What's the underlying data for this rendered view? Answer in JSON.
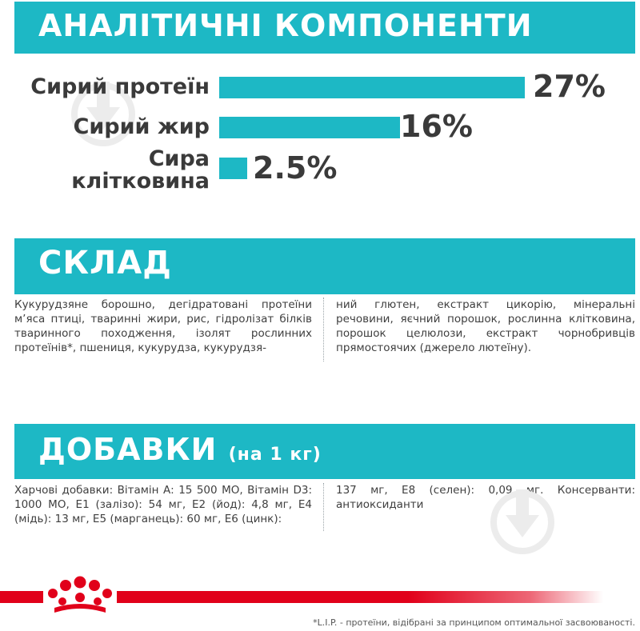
{
  "analytical": {
    "heading": "АНАЛІТИЧНІ КОМПОНЕНТИ",
    "rows": [
      {
        "label": "Сирий протеїн",
        "value": 27,
        "value_text": "27%"
      },
      {
        "label": "Сирий жир",
        "value": 16,
        "value_text": "16%"
      },
      {
        "label_line1": "Сира",
        "label_line2": "клітковина",
        "value": 2.5,
        "value_text": "2.5%"
      }
    ]
  },
  "composition": {
    "heading": "СКЛАД",
    "col1": "Кукурудзяне борошно, дегідратовані протеїни м’яса птиці, тваринні жири, рис, гідролізат білків тваринного походження, ізолят рослинних протеїнів*, пшениця, кукурудза, кукурудзя-",
    "col2": "ний глютен, екстракт цикорію, мінеральні речовини, яєчний порошок, рослинна клітковина, порошок целюлози, екстракт чорнобривців прямостоячих (джерело лютеїну)."
  },
  "additives": {
    "heading": "ДОБАВКИ",
    "heading_small": "(на 1 кг)",
    "col1": "Харчові добавки: Вітамін А: 15 500 МО, Вітамін D3: 1000 МО, Е1 (залізо): 54 мг, Е2 (йод): 4,8 мг, Е4 (мідь): 13 мг, Е5 (марганець): 60 мг, Е6 (цинк):",
    "col2": "137 мг, Е8 (селен): 0,09 мг. Консерванти: антиоксиданти"
  },
  "footnote": "*L.I.P. - протеїни, відібрані за принципом оптимальної засвоюваності.",
  "colors": {
    "accent": "#1db8c5",
    "brand_red": "#e1001a",
    "text": "#3a3a3a"
  },
  "icons": [
    "watermark-download-icon",
    "royal-canin-crown-icon"
  ]
}
